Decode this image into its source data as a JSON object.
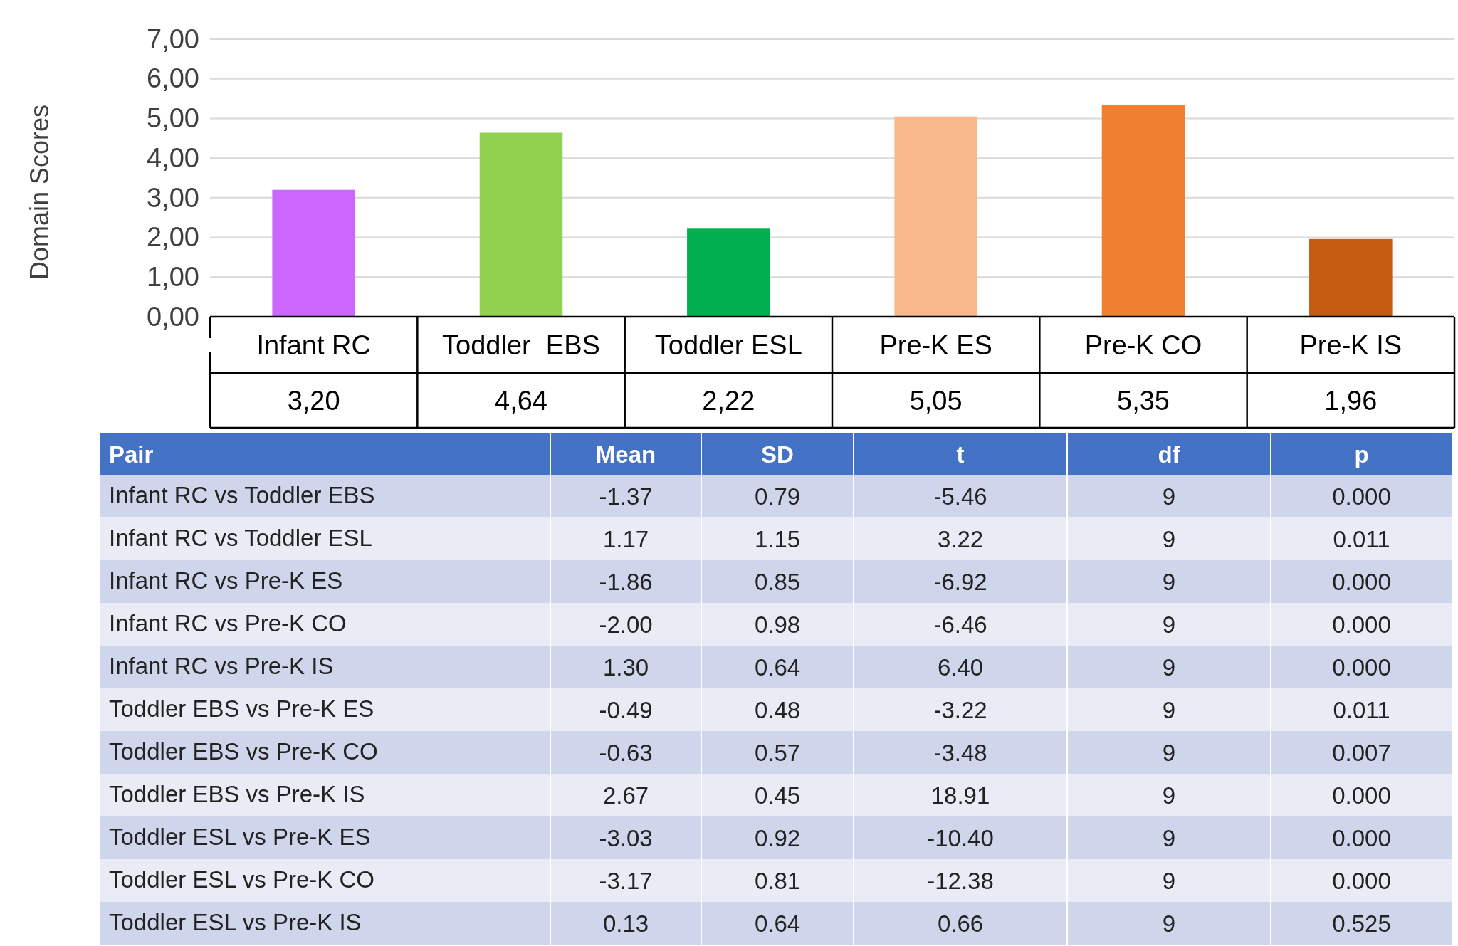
{
  "chart_data": [
    {
      "type": "bar",
      "ylabel": "Domain Scores",
      "categories": [
        "Infant RC",
        "Toddler  EBS",
        "Toddler ESL",
        "Pre-K ES",
        "Pre-K CO",
        "Pre-K IS"
      ],
      "values": [
        3.2,
        4.64,
        2.22,
        5.05,
        5.35,
        1.96
      ],
      "colors": [
        "#cc66ff",
        "#92d050",
        "#00b050",
        "#f8b88b",
        "#f07f30",
        "#c55a11"
      ],
      "value_labels": [
        "3,20",
        "4,64",
        "2,22",
        "5,05",
        "5,35",
        "1,96"
      ],
      "ylim": [
        0,
        7
      ],
      "yticks": [
        {
          "value": 0,
          "label": "0,00"
        },
        {
          "value": 1,
          "label": "1,00"
        },
        {
          "value": 2,
          "label": "2,00"
        },
        {
          "value": 3,
          "label": "3,00"
        },
        {
          "value": 4,
          "label": "4,00"
        },
        {
          "value": 5,
          "label": "5,00"
        },
        {
          "value": 6,
          "label": "6,00"
        },
        {
          "value": 7,
          "label": "7,00"
        }
      ],
      "grid": "y"
    },
    {
      "type": "other",
      "ylabel": "Pair",
      "categories": [
        "Mean",
        "SD",
        "t",
        "df",
        "p"
      ],
      "y_categories": [
        "Infant RC vs Toddler EBS",
        "Infant RC vs Toddler ESL",
        "Infant RC vs Pre-K ES",
        "Infant RC vs Pre-K CO",
        "Infant RC vs Pre-K IS",
        "Toddler EBS vs Pre-K ES",
        "Toddler EBS vs Pre-K CO",
        "Toddler EBS vs Pre-K IS",
        "Toddler ESL vs Pre-K ES",
        "Toddler ESL vs Pre-K CO",
        "Toddler ESL vs Pre-K IS"
      ],
      "cell_labels": [
        [
          "-1.37",
          "0.79",
          "-5.46",
          "9",
          "0.000"
        ],
        [
          "1.17",
          "1.15",
          "3.22",
          "9",
          "0.011"
        ],
        [
          "-1.86",
          "0.85",
          "-6.92",
          "9",
          "0.000"
        ],
        [
          "-2.00",
          "0.98",
          "-6.46",
          "9",
          "0.000"
        ],
        [
          "1.30",
          "0.64",
          "6.40",
          "9",
          "0.000"
        ],
        [
          "-0.49",
          "0.48",
          "-3.22",
          "9",
          "0.011"
        ],
        [
          "-0.63",
          "0.57",
          "-3.48",
          "9",
          "0.007"
        ],
        [
          "2.67",
          "0.45",
          "18.91",
          "9",
          "0.000"
        ],
        [
          "-3.03",
          "0.92",
          "-10.40",
          "9",
          "0.000"
        ],
        [
          "-3.17",
          "0.81",
          "-12.38",
          "9",
          "0.000"
        ],
        [
          "0.13",
          "0.64",
          "0.66",
          "9",
          "0.525"
        ]
      ]
    }
  ]
}
